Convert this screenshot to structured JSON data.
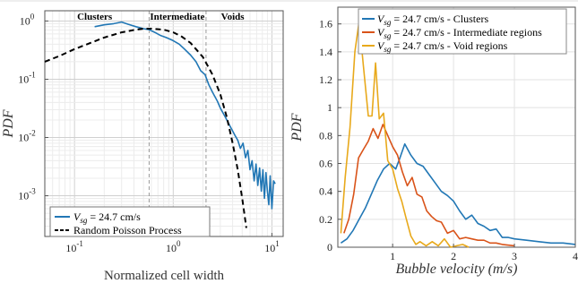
{
  "chart_data": [
    {
      "type": "line",
      "xscale": "log",
      "yscale": "log",
      "xlim": [
        0.05,
        13
      ],
      "ylim": [
        0.0002,
        1.5
      ],
      "xlabel": "Normalized cell width",
      "ylabel": "PDF",
      "xticks": [
        0.1,
        1,
        10
      ],
      "xtick_labels": [
        "10",
        "10",
        "10"
      ],
      "xtick_exponents": [
        "-1",
        "0",
        "1"
      ],
      "yticks": [
        1,
        0.1,
        0.01,
        0.001
      ],
      "ytick_labels": [
        "10",
        "10",
        "10",
        "10"
      ],
      "ytick_exponents": [
        "0",
        "-1",
        "-2",
        "-3"
      ],
      "grid": true,
      "legend_position": "bottom-left",
      "regions": [
        {
          "label": "Clusters",
          "x_label_at": 0.16
        },
        {
          "label": "Intermediate",
          "x_label_at": 1.1
        },
        {
          "label": "Voids",
          "x_label_at": 4.0
        }
      ],
      "boundaries": [
        0.57,
        2.15
      ],
      "series": [
        {
          "name": "V_sg = 24.7 cm/s",
          "color": "#2177b5",
          "style": "solid",
          "x": [
            0.16,
            0.2,
            0.25,
            0.3,
            0.35,
            0.42,
            0.5,
            0.57,
            0.65,
            0.75,
            0.85,
            1.0,
            1.15,
            1.3,
            1.5,
            1.7,
            1.9,
            2.1,
            2.3,
            2.5,
            2.8,
            3.0,
            3.3,
            3.6,
            3.9,
            4.2,
            4.5,
            4.8,
            5.1,
            5.4,
            5.7,
            6.0,
            6.3,
            6.6,
            6.9,
            7.2,
            7.5,
            7.8,
            8.1,
            8.4,
            8.7,
            9.0,
            9.3,
            9.6,
            10.0,
            10.4,
            10.8
          ],
          "y": [
            0.8,
            0.86,
            0.9,
            0.96,
            0.88,
            0.8,
            0.74,
            0.71,
            0.64,
            0.56,
            0.52,
            0.46,
            0.4,
            0.33,
            0.26,
            0.2,
            0.14,
            0.12,
            0.08,
            0.06,
            0.042,
            0.032,
            0.024,
            0.018,
            0.014,
            0.011,
            0.009,
            0.0065,
            0.008,
            0.0045,
            0.006,
            0.0028,
            0.004,
            0.0018,
            0.0035,
            0.0015,
            0.003,
            0.0012,
            0.0028,
            0.0009,
            0.0025,
            0.0012,
            0.0007,
            0.0022,
            0.0006,
            0.0018,
            0.0016
          ]
        },
        {
          "name": "Random Poisson Process",
          "color": "#000000",
          "style": "dashed",
          "x": [
            0.05,
            0.07,
            0.1,
            0.15,
            0.2,
            0.3,
            0.4,
            0.5,
            0.6,
            0.8,
            1.0,
            1.2,
            1.5,
            2.0,
            2.5,
            3.0,
            3.5,
            4.0,
            4.5,
            5.0,
            5.5
          ],
          "y": [
            0.2,
            0.25,
            0.33,
            0.43,
            0.52,
            0.64,
            0.7,
            0.74,
            0.74,
            0.71,
            0.64,
            0.55,
            0.42,
            0.24,
            0.12,
            0.055,
            0.022,
            0.008,
            0.0028,
            0.0009,
            0.00028
          ]
        }
      ],
      "legend": {
        "entries": [
          {
            "label_main": "V",
            "label_sub": "sg",
            "label_rest": " = 24.7  cm/s"
          },
          {
            "label_main": "Random Poisson Process",
            "label_sub": "",
            "label_rest": ""
          }
        ]
      }
    },
    {
      "type": "line",
      "xlim": [
        0.1,
        4
      ],
      "ylim": [
        0,
        1.72
      ],
      "xlabel": "Bubble velocity (m/s)",
      "ylabel": "PDF",
      "xticks": [
        1,
        2,
        3,
        4
      ],
      "yticks": [
        0,
        0.2,
        0.4,
        0.6,
        0.8,
        1,
        1.2,
        1.4,
        1.6
      ],
      "ytick_labels": [
        "0",
        "0.2",
        "0.4",
        "0.6",
        "0.8",
        "1",
        "1.2",
        "1.4",
        "1.6"
      ],
      "grid": true,
      "legend_position": "top-right",
      "series": [
        {
          "name": "V_sg = 24.7 cm/s - Clusters",
          "color": "#2177b5",
          "x": [
            0.15,
            0.25,
            0.35,
            0.45,
            0.55,
            0.65,
            0.75,
            0.85,
            0.95,
            1.05,
            1.12,
            1.2,
            1.3,
            1.4,
            1.5,
            1.6,
            1.7,
            1.8,
            1.9,
            2.0,
            2.1,
            2.2,
            2.3,
            2.4,
            2.5,
            2.6,
            2.7,
            2.8,
            2.9,
            3.0,
            3.2,
            3.4,
            3.6,
            3.8,
            4.0
          ],
          "y": [
            0.03,
            0.06,
            0.12,
            0.2,
            0.28,
            0.38,
            0.48,
            0.56,
            0.6,
            0.56,
            0.64,
            0.74,
            0.66,
            0.6,
            0.58,
            0.52,
            0.46,
            0.4,
            0.37,
            0.33,
            0.26,
            0.2,
            0.23,
            0.17,
            0.15,
            0.12,
            0.13,
            0.07,
            0.07,
            0.06,
            0.05,
            0.04,
            0.03,
            0.03,
            0.02
          ]
        },
        {
          "name": "V_sg = 24.7 cm/s - Intermediate regions",
          "color": "#d95319",
          "x": [
            0.2,
            0.28,
            0.36,
            0.44,
            0.52,
            0.6,
            0.68,
            0.76,
            0.84,
            0.92,
            1.0,
            1.08,
            1.16,
            1.24,
            1.32,
            1.4,
            1.48,
            1.56,
            1.64,
            1.72,
            1.8,
            1.9,
            2.0,
            2.1,
            2.2,
            2.3,
            2.4,
            2.5,
            2.6,
            2.7,
            2.8,
            3.0
          ],
          "y": [
            0.1,
            0.2,
            0.38,
            0.64,
            0.7,
            0.76,
            0.85,
            0.78,
            0.88,
            0.8,
            0.72,
            0.66,
            0.54,
            0.44,
            0.5,
            0.38,
            0.36,
            0.26,
            0.22,
            0.19,
            0.18,
            0.1,
            0.12,
            0.06,
            0.07,
            0.06,
            0.05,
            0.05,
            0.03,
            0.03,
            0.02,
            0.01
          ]
        },
        {
          "name": "V_sg = 24.7 cm/s - Void regions",
          "color": "#e8a91b",
          "x": [
            0.15,
            0.22,
            0.3,
            0.38,
            0.45,
            0.52,
            0.6,
            0.66,
            0.72,
            0.78,
            0.85,
            0.92,
            1.0,
            1.08,
            1.15,
            1.22,
            1.3,
            1.38,
            1.45,
            1.55,
            1.65,
            1.75,
            1.85,
            1.95,
            2.05,
            2.15,
            2.25
          ],
          "y": [
            0.1,
            0.5,
            0.86,
            1.4,
            1.62,
            1.3,
            0.94,
            0.94,
            1.32,
            0.92,
            0.96,
            0.62,
            0.56,
            0.42,
            0.33,
            0.21,
            0.08,
            0.02,
            0.04,
            0.01,
            0.04,
            0.01,
            0.06,
            0.0,
            0.01,
            0.02,
            0.0
          ]
        }
      ],
      "legend": {
        "entries": [
          {
            "label_main": "V",
            "label_sub": "sg",
            "label_rest": " = 24.7 cm/s - Clusters"
          },
          {
            "label_main": "V",
            "label_sub": "sg",
            "label_rest": " = 24.7 cm/s - Intermediate regions"
          },
          {
            "label_main": "V",
            "label_sub": "sg",
            "label_rest": " = 24.7 cm/s - Void regions"
          }
        ]
      }
    }
  ]
}
